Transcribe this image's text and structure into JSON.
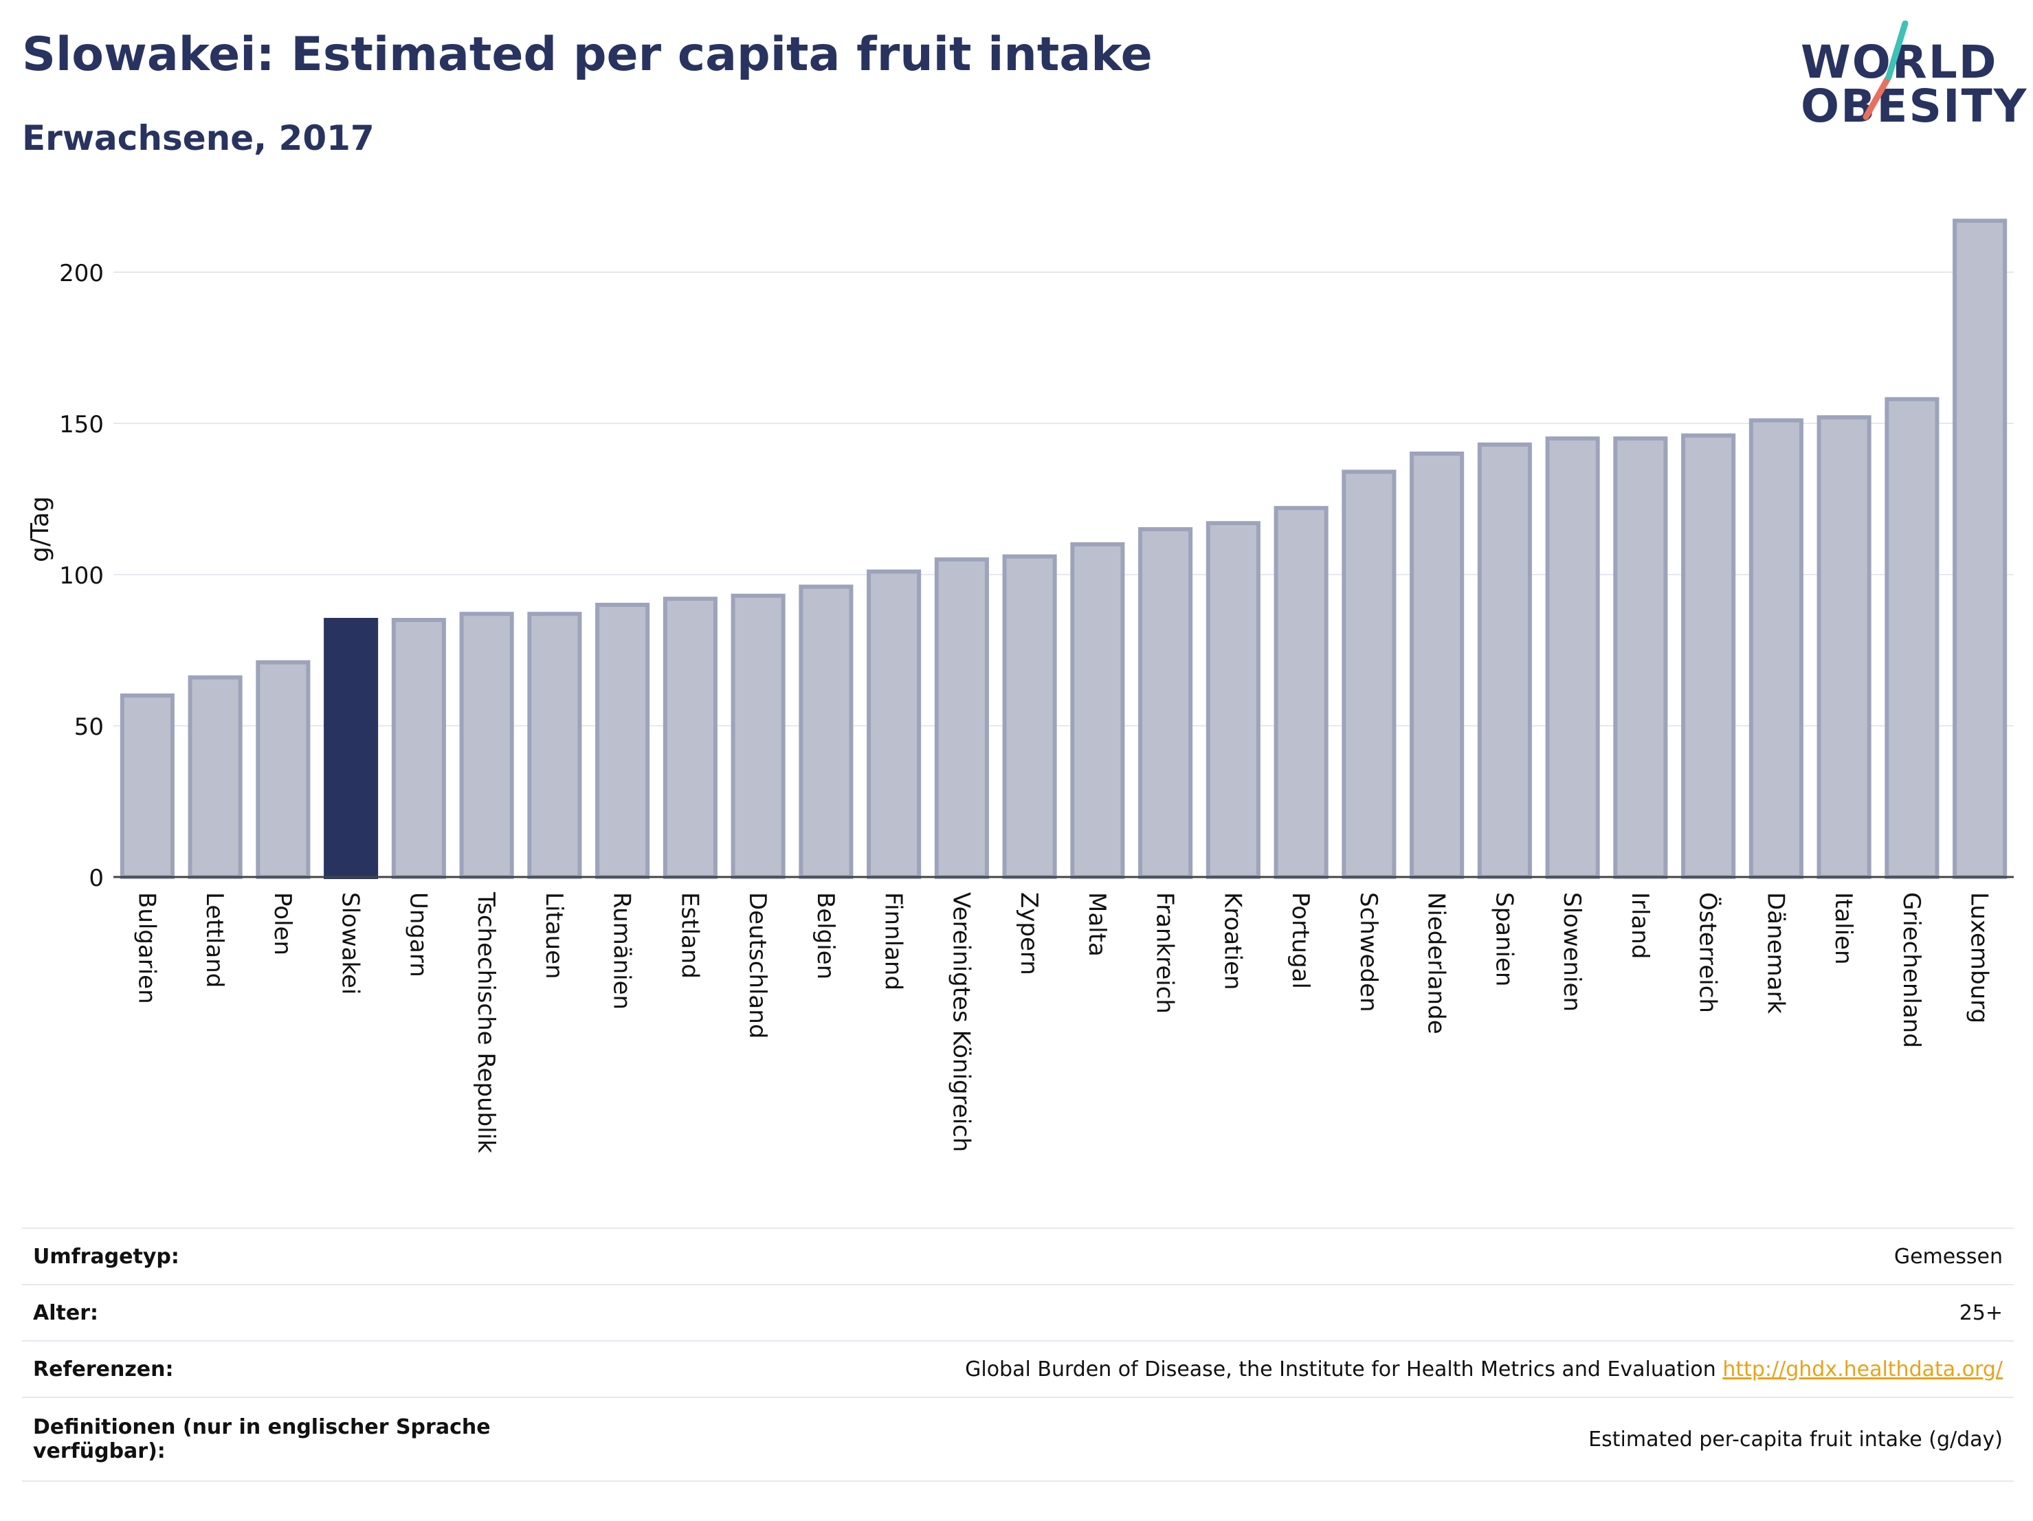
{
  "header": {
    "title": "Slowakei: Estimated per capita fruit intake",
    "subtitle": "Erwachsene, 2017"
  },
  "logo": {
    "line1": "WORLD",
    "line2": "OBESITY"
  },
  "chart_data": {
    "type": "bar",
    "ylabel": "g/Tag",
    "ylim": [
      0,
      230
    ],
    "yticks": [
      0,
      50,
      100,
      150,
      200
    ],
    "grid": true,
    "highlight": "Slowakei",
    "colors": {
      "bar": "#bcc0ce",
      "bar_border": "#9da3ba",
      "highlight": "#283360",
      "grid": "#e6e8f0"
    },
    "categories": [
      "Bulgarien",
      "Lettland",
      "Polen",
      "Slowakei",
      "Ungarn",
      "Tschechische Republik",
      "Litauen",
      "Rumänien",
      "Estland",
      "Deutschland",
      "Belgien",
      "Finnland",
      "Vereinigtes Königreich",
      "Zypern",
      "Malta",
      "Frankreich",
      "Kroatien",
      "Portugal",
      "Schweden",
      "Niederlande",
      "Spanien",
      "Slowenien",
      "Irland",
      "Österreich",
      "Dänemark",
      "Italien",
      "Griechenland",
      "Luxemburg"
    ],
    "values": [
      60,
      66,
      71,
      85,
      85,
      87,
      87,
      90,
      92,
      93,
      96,
      101,
      105,
      106,
      110,
      115,
      117,
      122,
      134,
      140,
      143,
      145,
      145,
      146,
      151,
      152,
      158,
      217
    ]
  },
  "info": [
    {
      "label": "Umfragetyp:",
      "value": "Gemessen"
    },
    {
      "label": "Alter:",
      "value": "25+"
    },
    {
      "label": "Referenzen:",
      "value": "Global Burden of Disease, the Institute for Health Metrics and Evaluation",
      "link": "http://ghdx.healthdata.org/"
    },
    {
      "label": "Definitionen (nur in englischer Sprache verfügbar):",
      "value": "Estimated per-capita fruit intake (g/day)"
    }
  ]
}
